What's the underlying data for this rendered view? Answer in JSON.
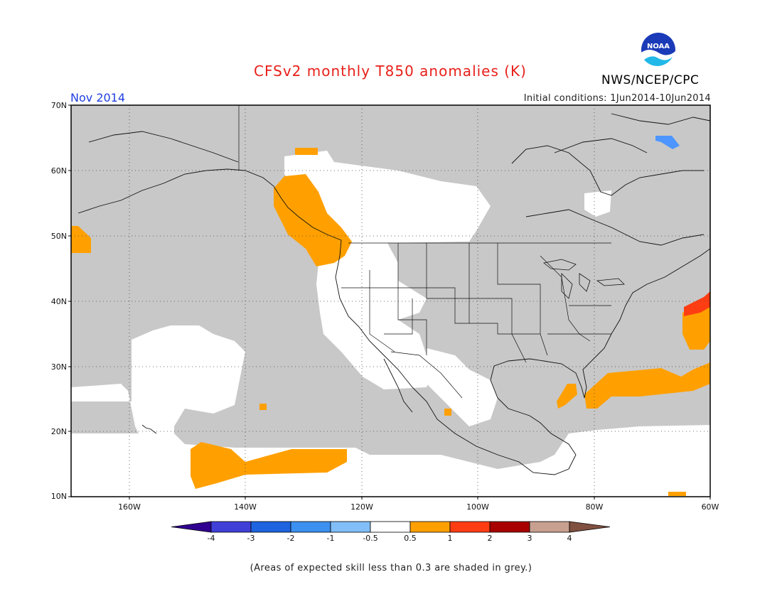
{
  "header": {
    "title": "CFSv2 monthly T850 anomalies (K)",
    "valid_month": "Nov 2014",
    "initial_conditions": "Initial conditions: 1Jun2014-10Jun2014",
    "organization": "NWS/NCEP/CPC",
    "logo_text": "NOAA"
  },
  "map": {
    "lat_labels": [
      "70N",
      "60N",
      "50N",
      "40N",
      "30N",
      "20N",
      "10N"
    ],
    "lon_labels": [
      "160W",
      "140W",
      "120W",
      "100W",
      "80W",
      "60W"
    ],
    "colors": {
      "grey_mask": "#c8c8c8",
      "neutral": "#ffffff",
      "warm_1": "#ffa000",
      "warm_2": "#ff3d13",
      "cool_1": "#4d96ff"
    }
  },
  "colorbar": {
    "labels": [
      "-4",
      "-3",
      "-2",
      "-1",
      "-0.5",
      "0.5",
      "1",
      "2",
      "3",
      "4"
    ],
    "colors": [
      "#300090",
      "#4040d8",
      "#1e64e0",
      "#3c90f0",
      "#82bef8",
      "#ffffff",
      "#ffa000",
      "#ff3d13",
      "#a80000",
      "#c8a090",
      "#805040"
    ]
  },
  "footnote": "(Areas of expected skill less than 0.3 are shaded in grey.)"
}
